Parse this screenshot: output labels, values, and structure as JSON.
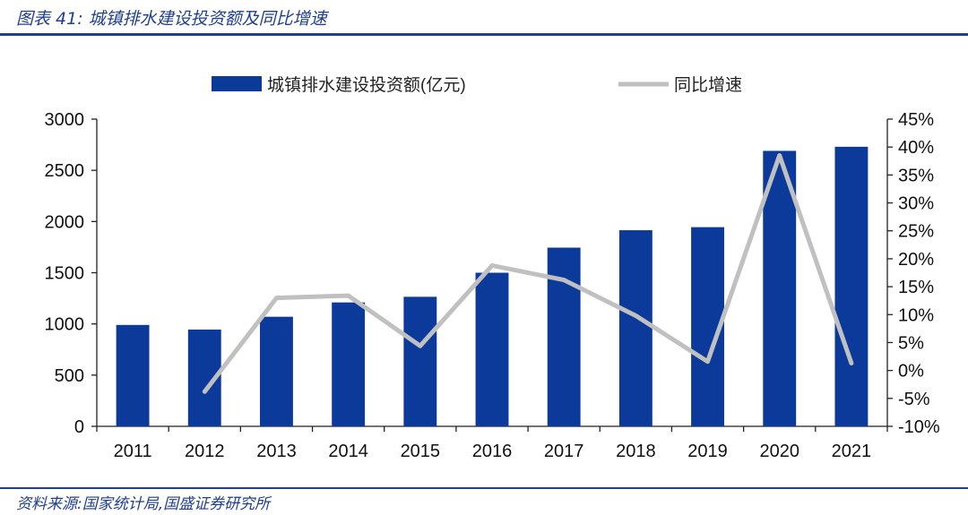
{
  "figure": {
    "title": "图表 41:  城镇排水建设投资额及同比增速",
    "source": "资料来源:国家统计局,国盛证券研究所"
  },
  "colors": {
    "bar": "#0b3a9b",
    "line": "#c0c0c0",
    "header": "#1f3f8f",
    "axis": "#222222"
  },
  "chart_data": {
    "type": "bar",
    "title": "",
    "categories": [
      "2011",
      "2012",
      "2013",
      "2014",
      "2015",
      "2016",
      "2017",
      "2018",
      "2019",
      "2020",
      "2021"
    ],
    "series": [
      {
        "name": "城镇排水建设投资额(亿元)",
        "type": "bar",
        "axis": "left",
        "values": [
          990,
          945,
          1070,
          1210,
          1265,
          1500,
          1745,
          1915,
          1945,
          2690,
          2730
        ]
      },
      {
        "name": "同比增速",
        "type": "line",
        "axis": "right",
        "values": [
          null,
          -3.8,
          13.0,
          13.4,
          4.4,
          18.8,
          16.2,
          9.8,
          1.6,
          38.5,
          1.3
        ]
      }
    ],
    "ylim_left": [
      0,
      3000
    ],
    "yticks_left": [
      0,
      500,
      1000,
      1500,
      2000,
      2500,
      3000
    ],
    "ylim_right": [
      -10,
      45
    ],
    "yticks_right": [
      "-10%",
      "-5%",
      "0%",
      "5%",
      "10%",
      "15%",
      "20%",
      "25%",
      "30%",
      "35%",
      "40%",
      "45%"
    ],
    "legend": "top-center",
    "grid": false
  }
}
